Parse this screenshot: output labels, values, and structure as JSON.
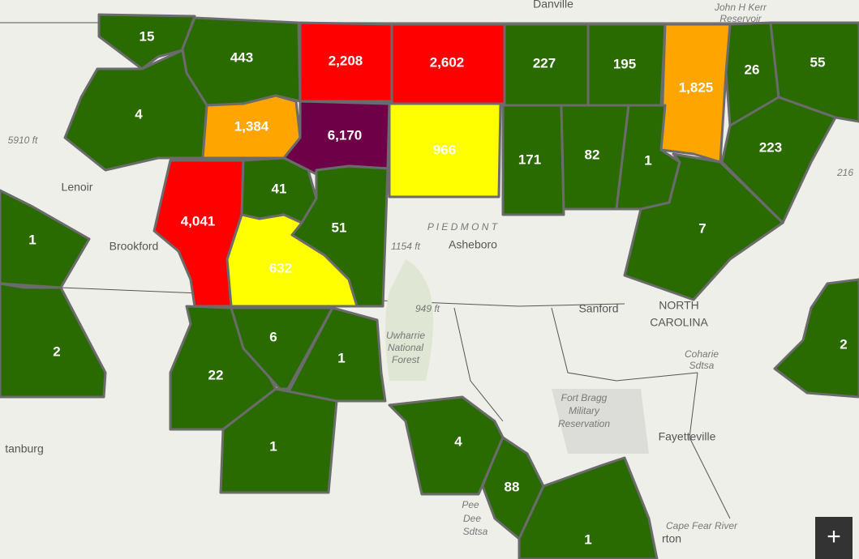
{
  "map": {
    "counties": [
      "15",
      "443",
      "2,208",
      "2,602",
      "227",
      "195",
      "1,825",
      "26",
      "55",
      "4",
      "1,384",
      "6,170",
      "966",
      "171",
      "82",
      "1",
      "223",
      "7",
      "4,041",
      "41",
      "51",
      "632",
      "1",
      "2",
      "22",
      "6",
      "1",
      "1",
      "4",
      "88",
      "1",
      "2"
    ],
    "places": [
      "Danville",
      "John H Kerr",
      "Reservoir",
      "Lenoir",
      "Brookford",
      "P I E D M O N T",
      "Asheboro",
      "1154 ft",
      "949 ft",
      "Sanford",
      "NORTH",
      "CAROLINA",
      "Coharie",
      "Sdtsa",
      "Fort Bragg",
      "Military",
      "Reservation",
      "Fayetteville",
      "Uwharrie",
      "National",
      "Forest",
      "Pee",
      "Dee",
      "Sdtsa",
      "tanburg",
      "Cape Fear River",
      "rton",
      "5910 ft",
      "216"
    ],
    "zoom_button": "+"
  }
}
